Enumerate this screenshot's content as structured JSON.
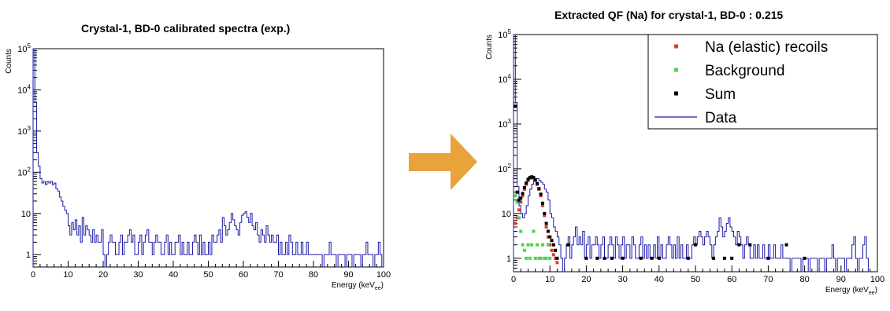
{
  "arrow": {
    "color": "#E8A33A"
  },
  "chart_data": [
    {
      "type": "histogram",
      "title": "Crystal-1, BD-0 calibrated spectra (exp.)",
      "xlabel": "Energy (keV",
      "xlabel_sub": "ee",
      "xlabel_close": ")",
      "ylabel": "Counts",
      "xlim": [
        0,
        100
      ],
      "ylim": [
        0.5,
        100000
      ],
      "yscale": "log",
      "x_ticks": [
        "0",
        "10",
        "20",
        "30",
        "40",
        "50",
        "60",
        "70",
        "80",
        "90",
        "100"
      ],
      "y_ticks": [
        {
          "value": 1,
          "base": "1",
          "exp": ""
        },
        {
          "value": 10,
          "base": "10",
          "exp": ""
        },
        {
          "value": 100,
          "base": "10",
          "exp": "2"
        },
        {
          "value": 1000,
          "base": "10",
          "exp": "3"
        },
        {
          "value": 10000,
          "base": "10",
          "exp": "4"
        },
        {
          "value": 100000,
          "base": "10",
          "exp": "5"
        }
      ],
      "grid": false,
      "series": [
        {
          "color": "#1A1AA8",
          "bin_width": 0.5,
          "x_start": 0,
          "values": [
            100000,
            5000,
            300,
            140,
            70,
            55,
            60,
            50,
            60,
            55,
            60,
            50,
            55,
            40,
            35,
            25,
            20,
            15,
            12,
            10,
            5,
            3,
            6,
            4,
            7,
            3,
            5,
            2,
            8,
            3,
            5,
            4,
            3,
            2,
            4,
            2,
            3,
            2,
            2,
            4,
            1,
            0.5,
            1,
            2,
            3,
            2,
            2,
            1,
            1,
            2,
            3,
            1,
            2,
            2,
            3,
            4,
            2,
            3,
            1,
            1,
            2,
            3,
            1,
            2,
            3,
            4,
            2,
            2,
            1,
            2,
            3,
            2,
            2,
            1,
            1,
            2,
            3,
            1,
            2,
            1,
            1,
            2,
            2,
            3,
            1,
            2,
            1,
            1,
            2,
            1,
            1,
            2,
            3,
            2,
            1,
            3,
            1,
            2,
            1,
            1,
            2,
            1,
            3,
            2,
            2,
            3,
            4,
            2,
            8,
            5,
            3,
            4,
            6,
            10,
            7,
            5,
            4,
            3,
            6,
            9,
            10,
            11,
            8,
            6,
            10,
            5,
            4,
            6,
            3,
            2,
            4,
            3,
            2,
            5,
            3,
            2,
            3,
            2,
            2,
            3,
            1,
            2,
            1,
            1,
            2,
            1,
            3,
            2,
            1,
            1,
            2,
            1,
            1,
            2,
            1,
            1,
            2,
            1,
            1,
            1,
            1,
            1,
            1,
            1,
            1,
            0.5,
            1,
            1,
            1,
            2,
            1,
            1,
            1,
            0.5,
            1,
            1,
            1,
            1,
            0.5,
            1,
            1,
            1,
            0.5,
            1,
            1,
            1,
            1,
            0.5,
            1,
            1,
            2,
            1,
            1,
            1,
            0.5,
            1,
            1,
            2,
            1,
            0.5
          ]
        }
      ]
    },
    {
      "type": "histogram+scatter",
      "title": "Extracted QF (Na) for crystal-1, BD-0 : 0.215",
      "xlabel": "Energy (keV",
      "xlabel_sub": "ee",
      "xlabel_close": ")",
      "ylabel": "Counts",
      "xlim": [
        0,
        100
      ],
      "ylim": [
        0.5,
        100000
      ],
      "yscale": "log",
      "x_ticks": [
        "0",
        "10",
        "20",
        "30",
        "40",
        "50",
        "60",
        "70",
        "80",
        "90",
        "100"
      ],
      "y_ticks": [
        {
          "value": 1,
          "base": "1",
          "exp": ""
        },
        {
          "value": 10,
          "base": "10",
          "exp": ""
        },
        {
          "value": 100,
          "base": "10",
          "exp": "2"
        },
        {
          "value": 1000,
          "base": "10",
          "exp": "3"
        },
        {
          "value": 10000,
          "base": "10",
          "exp": "4"
        },
        {
          "value": 100000,
          "base": "10",
          "exp": "5"
        }
      ],
      "grid": false,
      "legend": {
        "placement": "top-right",
        "entries": [
          {
            "label": "Na (elastic) recoils",
            "color": "#E23A2C",
            "kind": "marker"
          },
          {
            "label": "Background",
            "color": "#4DD44D",
            "kind": "marker"
          },
          {
            "label": "Sum",
            "color": "#000000",
            "kind": "marker"
          },
          {
            "label": "Data",
            "color": "#1A1AA8",
            "kind": "line"
          }
        ]
      },
      "series": [
        {
          "name": "Data",
          "color": "#1A1AA8",
          "kind": "histogram",
          "bin_width": 0.5,
          "x_start": 0,
          "values": [
            100000,
            3000,
            40,
            15,
            10,
            8,
            10,
            15,
            25,
            35,
            45,
            55,
            60,
            60,
            55,
            50,
            45,
            35,
            30,
            20,
            10,
            8,
            5,
            4,
            3,
            2,
            1,
            0.5,
            1,
            2,
            3,
            1,
            2,
            3,
            5,
            2,
            3,
            2,
            4,
            1,
            2,
            3,
            1,
            2,
            2,
            3,
            2,
            1,
            2,
            3,
            1,
            1,
            2,
            3,
            2,
            1,
            3,
            2,
            1,
            2,
            3,
            1,
            2,
            2,
            1,
            3,
            2,
            1,
            1,
            2,
            3,
            1,
            2,
            1,
            2,
            1,
            1,
            2,
            1,
            3,
            1,
            2,
            1,
            1,
            2,
            3,
            2,
            1,
            2,
            1,
            3,
            1,
            2,
            1,
            1,
            2,
            1,
            1,
            2,
            3,
            2,
            3,
            4,
            3,
            2,
            3,
            4,
            3,
            2,
            1,
            2,
            3,
            4,
            8,
            5,
            3,
            4,
            6,
            8,
            5,
            4,
            3,
            2,
            4,
            3,
            2,
            1,
            2,
            3,
            2,
            1,
            1,
            2,
            1,
            2,
            1,
            1,
            2,
            1,
            1,
            2,
            1,
            1,
            2,
            1,
            1,
            1,
            2,
            1,
            1,
            1,
            1,
            0.5,
            1,
            1,
            1,
            1,
            1,
            0.5,
            1,
            1,
            1,
            0.5,
            1,
            1,
            1,
            1,
            0.5,
            1,
            1,
            1,
            0.5,
            1,
            1,
            1,
            2,
            1,
            0.5,
            1,
            1,
            1,
            1,
            0.5,
            1,
            1,
            1,
            2,
            3,
            1,
            0.5,
            1,
            1,
            2,
            3,
            1,
            0.5
          ]
        },
        {
          "name": "Na (elastic) recoils",
          "color": "#E23A2C",
          "kind": "marker",
          "x": [
            0.5,
            1.0,
            1.5,
            2.0,
            2.5,
            3.0,
            3.5,
            4.0,
            4.5,
            5.0,
            5.5,
            6.0,
            6.5,
            7.0,
            7.5,
            8.0,
            8.5,
            9.0,
            9.5,
            10.0,
            10.5,
            11.0,
            11.5,
            12.0
          ],
          "y": [
            6,
            8,
            12,
            18,
            25,
            35,
            45,
            55,
            62,
            65,
            62,
            55,
            45,
            35,
            25,
            15,
            9,
            5,
            3,
            2,
            1.5,
            1.2,
            1,
            0.8
          ]
        },
        {
          "name": "Background",
          "color": "#4DD44D",
          "kind": "marker",
          "x": [
            0.5,
            1.0,
            1.5,
            2.0,
            2.5,
            3.0,
            3.5,
            4.0,
            4.5,
            5.0,
            5.5,
            6.0,
            6.5,
            7.0,
            7.5,
            8.0,
            8.5,
            9.0,
            9.5,
            10.0
          ],
          "y": [
            25,
            18,
            8,
            4,
            2,
            1.5,
            1,
            2,
            1,
            2,
            4,
            1,
            2,
            1,
            1,
            2,
            1,
            1,
            2,
            1
          ]
        },
        {
          "name": "Sum",
          "color": "#000000",
          "kind": "marker",
          "x": [
            0.5,
            1.0,
            1.5,
            2.0,
            2.5,
            3.0,
            3.5,
            4.0,
            4.5,
            5.0,
            5.5,
            6.0,
            6.5,
            7.0,
            7.5,
            8.0,
            8.5,
            9.0,
            9.5,
            10.0,
            10.5,
            11.0,
            11.5,
            12.0,
            15.0,
            20.0,
            23.0,
            25.0,
            27.0,
            30.0,
            35.0,
            38.0,
            40.0,
            48.0,
            50.0,
            55.0,
            58.0,
            60.0,
            62.0,
            65.0,
            70.0,
            75.0,
            80.0
          ],
          "y": [
            2500,
            30,
            20,
            22,
            28,
            38,
            48,
            58,
            64,
            66,
            64,
            57,
            47,
            36,
            27,
            17,
            10,
            6,
            4,
            3,
            2.5,
            2,
            1.5,
            1,
            2,
            1,
            1,
            1,
            1,
            1,
            1,
            1,
            1,
            1,
            2,
            1,
            1,
            1,
            2,
            2,
            1,
            2,
            1
          ]
        }
      ]
    }
  ]
}
